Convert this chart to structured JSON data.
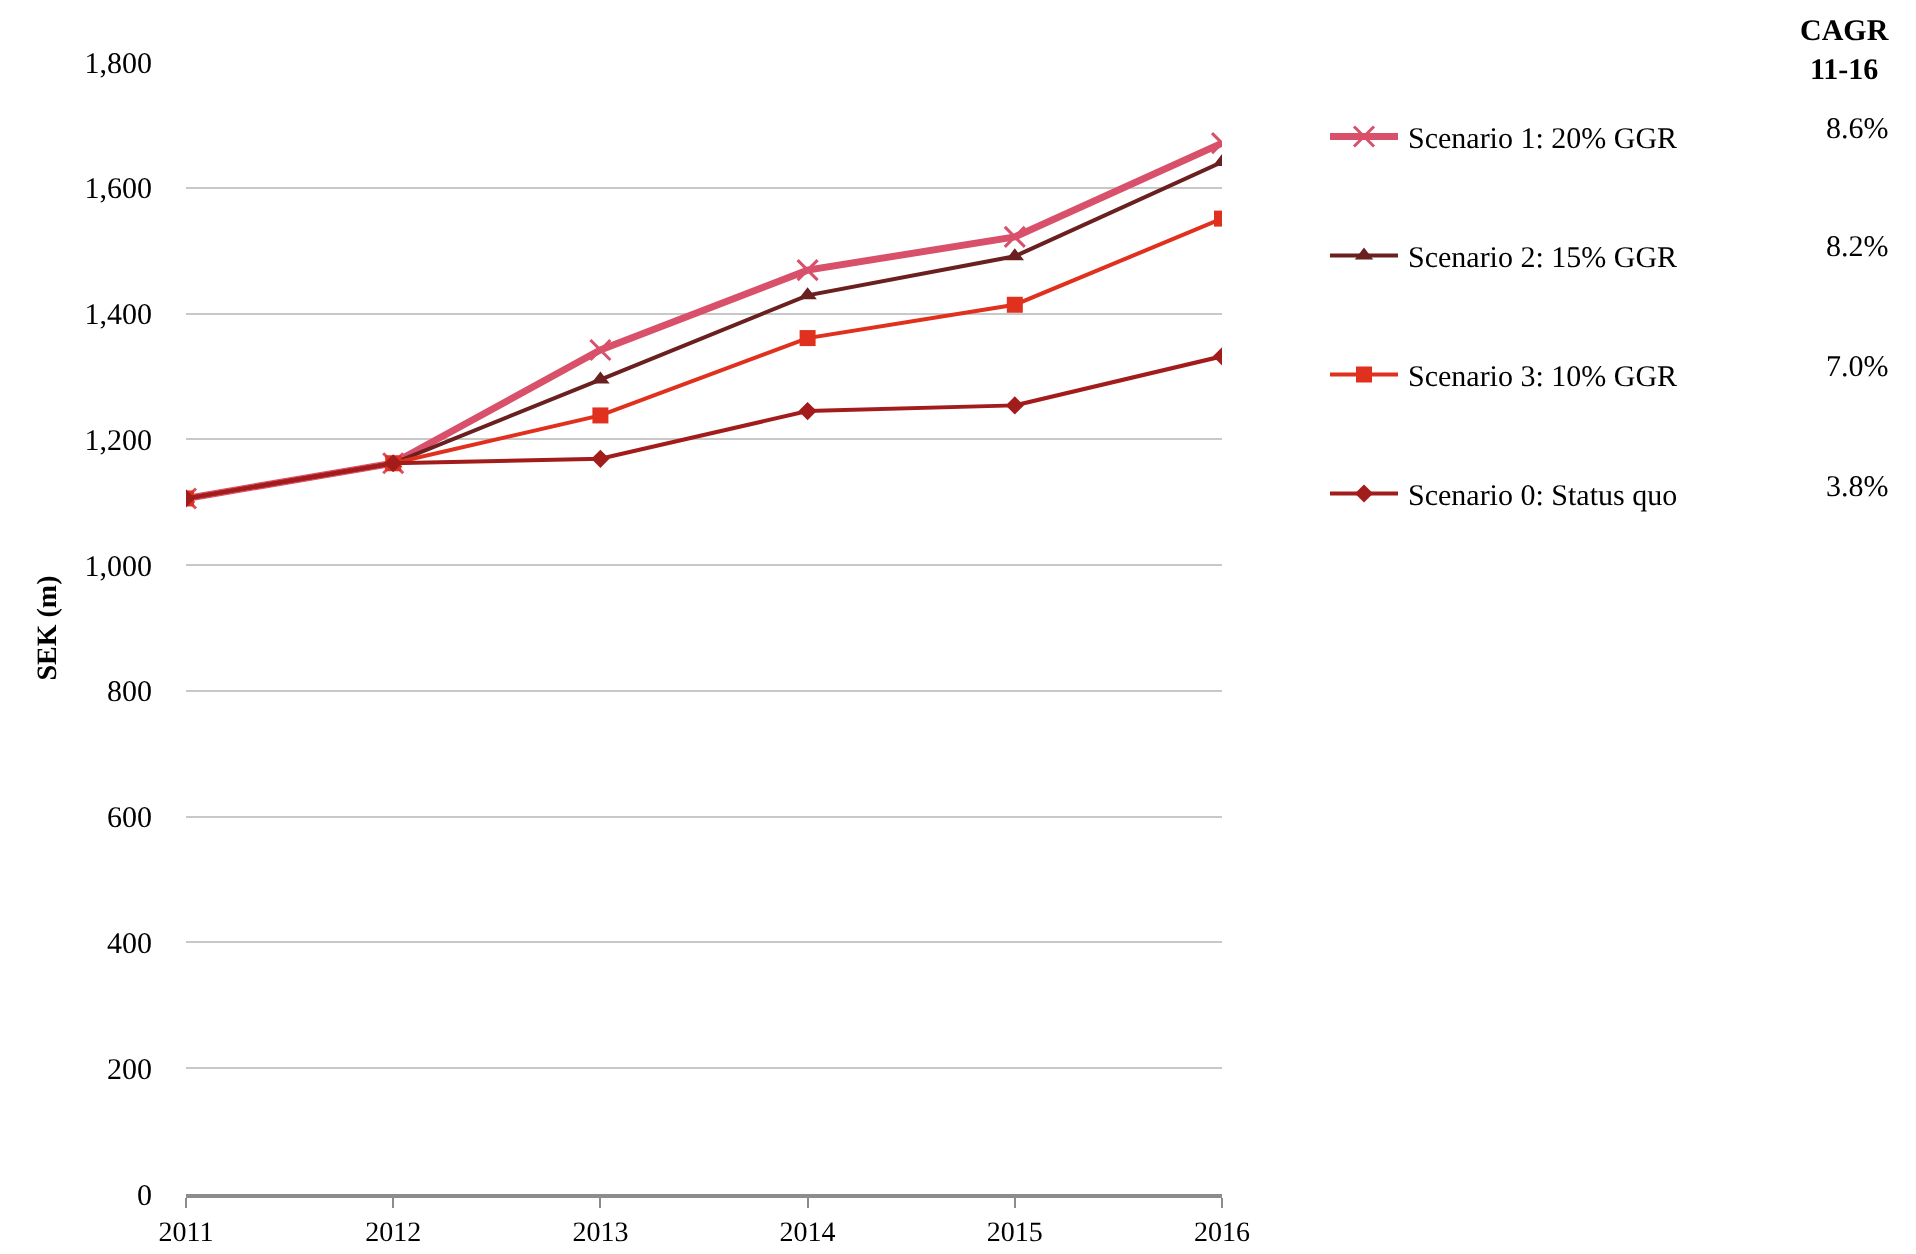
{
  "chart_data": {
    "type": "line",
    "ylabel": "SEK (m)",
    "x": [
      2011,
      2012,
      2013,
      2014,
      2015,
      2016
    ],
    "xlim": [
      2011,
      2016
    ],
    "xticks": [
      2011,
      2012,
      2013,
      2014,
      2015,
      2016
    ],
    "ylim": [
      0,
      1800
    ],
    "yticks": [
      0,
      200,
      400,
      600,
      800,
      {
        "value": 1000,
        "label": "1,000"
      },
      {
        "value": 1200,
        "label": "1,200"
      },
      {
        "value": 1400,
        "label": "1,400"
      },
      {
        "value": 1600,
        "label": "1,600"
      },
      {
        "value": 1800,
        "label": "1,800"
      }
    ],
    "grid": "y",
    "legend": "right",
    "line_style": "solid",
    "series": [
      {
        "name": "Scenario 1: 20% GGR",
        "color": "#d9506a",
        "marker": "cross",
        "values": [
          1106,
          1162,
          1342,
          1469,
          1522,
          1671
        ]
      },
      {
        "name": "Scenario 2: 15% GGR",
        "color": "#6b2020",
        "marker": "triangle",
        "values": [
          1106,
          1162,
          1295,
          1429,
          1491,
          1641
        ]
      },
      {
        "name": "Scenario 3: 10% GGR",
        "color": "#e0301e",
        "marker": "square",
        "values": [
          1106,
          1162,
          1238,
          1361,
          1414,
          1551
        ]
      },
      {
        "name": "Scenario 0: Status quo",
        "color": "#a31c1c",
        "marker": "diamond",
        "values": [
          1106,
          1162,
          1169,
          1245,
          1254,
          1332
        ]
      }
    ],
    "annotations": [
      "CAGR\n11-16",
      "8.6%",
      "8.2%",
      "7.0%",
      "3.8%"
    ]
  }
}
